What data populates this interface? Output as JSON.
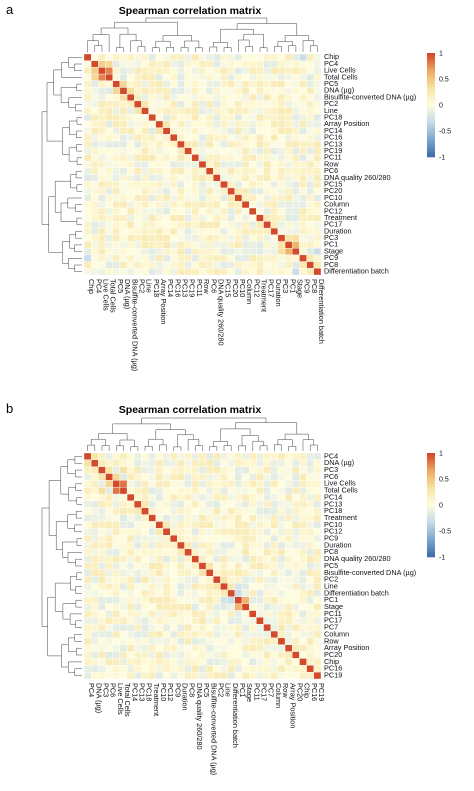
{
  "colors": {
    "scale": [
      "#3f6fa8",
      "#7fa9cf",
      "#c5dbe9",
      "#fffde0",
      "#f7e3a3",
      "#f0a862",
      "#d24a2a"
    ],
    "positive_accent": "#d24a2a",
    "negative_accent": "#3f6fa8"
  },
  "chart_data": [
    {
      "type": "heatmap",
      "panel": "a",
      "title": "Spearman correlation matrix",
      "labels": [
        "Chip",
        "PC4",
        "Live Cells",
        "Total Cells",
        "PC5",
        "DNA (µg)",
        "Bisulfite-converted DNA (µg)",
        "PC2",
        "Line",
        "PC18",
        "Array Position",
        "PC14",
        "PC16",
        "PC13",
        "PC19",
        "PC11",
        "Row",
        "PC6",
        "DNA quality 260/280",
        "PC15",
        "PC20",
        "PC10",
        "Column",
        "PC12",
        "Treatment",
        "PC17",
        "Duration",
        "PC3",
        "PC1",
        "Stage",
        "PC9",
        "PC8",
        "Differentiation batch"
      ],
      "legend": {
        "min": -1,
        "max": 1,
        "ticks": [
          "1",
          "0.5",
          "0",
          "-0.5",
          "-1"
        ]
      },
      "dendrogram": true,
      "highlights": [
        {
          "row": "Live Cells",
          "col": "Total Cells",
          "value": 0.8
        },
        {
          "row": "Live Cells",
          "col": "PC4",
          "value": 0.45
        },
        {
          "row": "Total Cells",
          "col": "PC4",
          "value": 0.4
        },
        {
          "row": "PC5",
          "col": "DNA (µg)",
          "value": 0.4
        },
        {
          "row": "DNA (µg)",
          "col": "Bisulfite-converted DNA (µg)",
          "value": 0.35
        },
        {
          "row": "PC2",
          "col": "Line",
          "value": 0.3
        },
        {
          "row": "PC3",
          "col": "PC1",
          "value": 0.3
        },
        {
          "row": "PC1",
          "col": "Stage",
          "value": 0.6
        },
        {
          "row": "PC3",
          "col": "Stage",
          "value": 0.35
        },
        {
          "row": "PC9",
          "col": "PC8",
          "value": 0.25
        },
        {
          "row": "Stage",
          "col": "Differentiation batch",
          "value": -0.3
        },
        {
          "row": "PC9",
          "col": "Chip",
          "value": -0.3
        }
      ]
    },
    {
      "type": "heatmap",
      "panel": "b",
      "title": "Spearman correlation matrix",
      "labels": [
        "PC4",
        "DNA (µg)",
        "PC3",
        "PC6",
        "Live Cells",
        "Total Cells",
        "PC14",
        "PC13",
        "PC18",
        "Treatment",
        "PC10",
        "PC12",
        "PC9",
        "Duration",
        "PC8",
        "DNA quality 260/280",
        "PC5",
        "Bisulfite-converted DNA (µg)",
        "PC2",
        "Line",
        "Differentiation batch",
        "PC1",
        "Stage",
        "PC11",
        "PC17",
        "PC7",
        "Column",
        "Row",
        "Array Position",
        "PC20",
        "Chip",
        "PC16",
        "PC19"
      ],
      "legend": {
        "min": -1,
        "max": 1,
        "ticks": [
          "1",
          "0.5",
          "0",
          "-0.5",
          "-1"
        ]
      },
      "dendrogram": true,
      "highlights": [
        {
          "row": "Live Cells",
          "col": "Total Cells",
          "value": 0.85
        },
        {
          "row": "PC6",
          "col": "Live Cells",
          "value": 0.4
        },
        {
          "row": "PC3",
          "col": "Total Cells",
          "value": 0.35
        },
        {
          "row": "PC4",
          "col": "DNA (µg)",
          "value": 0.3
        },
        {
          "row": "PC5",
          "col": "Bisulfite-converted DNA (µg)",
          "value": 0.3
        },
        {
          "row": "PC2",
          "col": "Line",
          "value": 0.3
        },
        {
          "row": "PC1",
          "col": "Stage",
          "value": 0.6
        },
        {
          "row": "Differentiation batch",
          "col": "PC1",
          "value": -0.3
        },
        {
          "row": "PC3",
          "col": "PC6",
          "value": 0.3
        },
        {
          "row": "PC8",
          "col": "Duration",
          "value": 0.25
        },
        {
          "row": "Line",
          "col": "PC1",
          "value": -0.25
        }
      ]
    }
  ]
}
